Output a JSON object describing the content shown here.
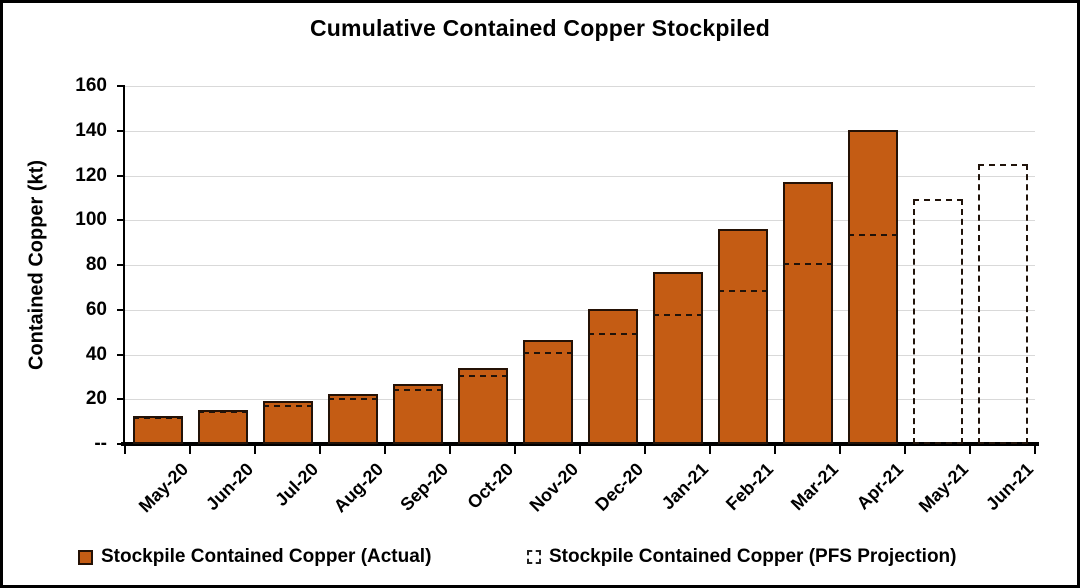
{
  "title": "Cumulative Contained Copper Stockpiled",
  "y_axis": {
    "label": "Contained Copper (kt)",
    "tick_labels": [
      "160",
      "140",
      "120",
      "100",
      "80",
      "60",
      "40",
      "20",
      "--"
    ],
    "zero_label": "--",
    "max": 160,
    "step": 20
  },
  "legend": [
    {
      "label": "Stockpile Contained Copper (Actual)",
      "swatch": "solid"
    },
    {
      "label": "Stockpile Contained Copper (PFS Projection)",
      "swatch": "dashed"
    }
  ],
  "colors": {
    "bar_fill": "#C45C14",
    "bar_border": "#241105",
    "projection_dash": "#20130a",
    "gridline": "#d9d9d9",
    "axis": "#000000",
    "background": "#ffffff",
    "title_text": "#000000"
  },
  "chart_data": {
    "type": "bar",
    "title": "Cumulative Contained Copper Stockpiled",
    "xlabel": "",
    "ylabel": "Contained Copper (kt)",
    "ylim": [
      0,
      160
    ],
    "ytick_step": 20,
    "grid": true,
    "legend_position": "bottom",
    "categories": [
      "May-20",
      "Jun-20",
      "Jul-20",
      "Aug-20",
      "Sep-20",
      "Oct-20",
      "Nov-20",
      "Dec-20",
      "Jan-21",
      "Feb-21",
      "Mar-21",
      "Apr-21",
      "May-21",
      "Jun-21"
    ],
    "series": [
      {
        "name": "Stockpile Contained Copper (Actual)",
        "style": "solid",
        "values": [
          12.4,
          15,
          19.4,
          22.5,
          27,
          34,
          46.5,
          60.5,
          77,
          96,
          117,
          140.5,
          null,
          null
        ]
      },
      {
        "name": "Stockpile Contained Copper (PFS Projection)",
        "style": "dashed-outline",
        "values": [
          12,
          14.6,
          17.5,
          20.5,
          24.6,
          31,
          41,
          49.4,
          58,
          69,
          81,
          94,
          109.3,
          125.3
        ]
      }
    ]
  }
}
